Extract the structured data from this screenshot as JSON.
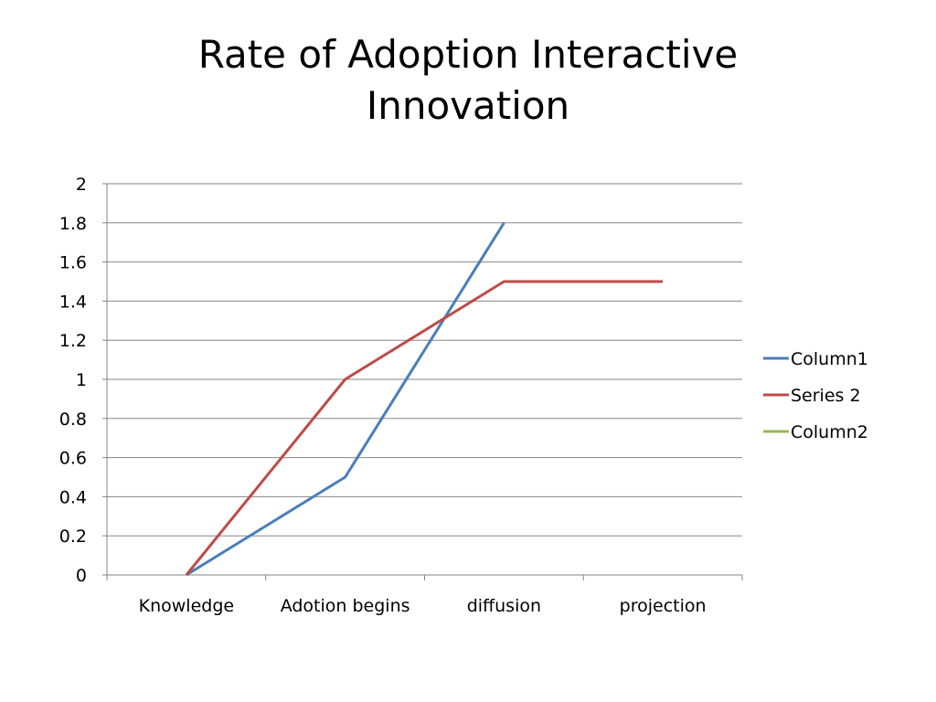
{
  "slide": {
    "title_lines": [
      "Rate of Adoption Interactive",
      "Innovation"
    ]
  },
  "chart_data": {
    "type": "line",
    "title": "",
    "xlabel": "",
    "ylabel": "",
    "categories": [
      "Knowledge",
      "Adotion begins",
      "diffusion",
      "projection"
    ],
    "ylim": [
      0,
      2
    ],
    "yticks": [
      0,
      0.2,
      0.4,
      0.6,
      0.8,
      1,
      1.2,
      1.4,
      1.6,
      1.8,
      2
    ],
    "ytick_labels": [
      "0",
      "0.2",
      "0.4",
      "0.6",
      "0.8",
      "1",
      "1.2",
      "1.4",
      "1.6",
      "1.8",
      "2"
    ],
    "grid": true,
    "legend": "right",
    "series": [
      {
        "name": "Column1",
        "color": "#4A7EBB",
        "values": [
          0,
          0.5,
          1.8,
          null
        ]
      },
      {
        "name": "Series 2",
        "color": "#BE4B48",
        "values": [
          0,
          1,
          1.5,
          1.5
        ]
      },
      {
        "name": "Column2",
        "color": "#98B954",
        "values": [
          null,
          null,
          null,
          null
        ]
      }
    ]
  }
}
